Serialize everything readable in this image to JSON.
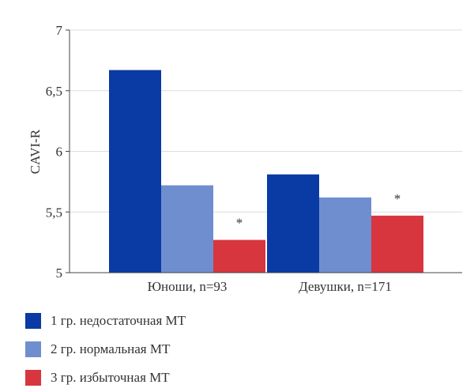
{
  "chart_data": {
    "type": "bar",
    "ylabel": "CAVI-R",
    "ylim": [
      5,
      7
    ],
    "yticks": [
      5,
      5.5,
      6,
      6.5,
      7
    ],
    "ytick_labels": [
      "5",
      "5,5",
      "6",
      "6,5",
      "7"
    ],
    "categories": [
      "Юноши, n=93",
      "Девушки, n=171"
    ],
    "grid": true,
    "legend_position": "bottom-left",
    "series": [
      {
        "name": "1 гр. недостаточная МТ",
        "color": "#0a3aa3",
        "values": [
          6.67,
          5.81
        ],
        "annotations": [
          "",
          ""
        ]
      },
      {
        "name": "2 гр. нормальная МТ",
        "color": "#6f8ed0",
        "values": [
          5.72,
          5.62
        ],
        "annotations": [
          "",
          ""
        ]
      },
      {
        "name": "3 гр. избыточная МТ",
        "color": "#d7363f",
        "values": [
          5.27,
          5.47
        ],
        "annotations": [
          "*",
          "*"
        ]
      }
    ]
  }
}
